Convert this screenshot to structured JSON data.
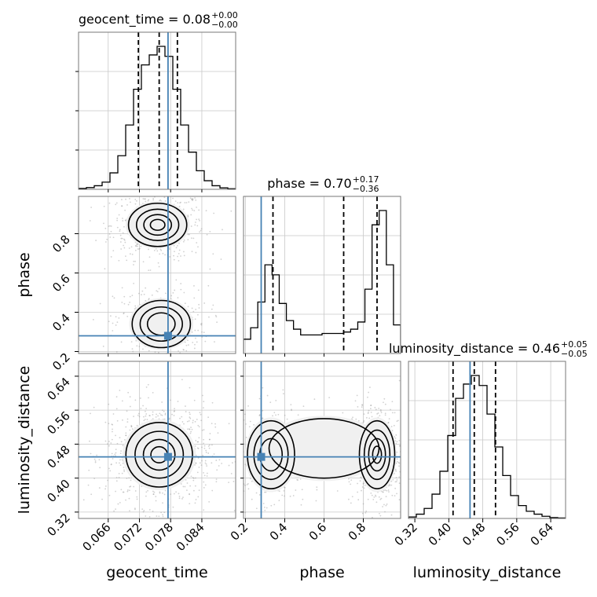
{
  "chart_data": {
    "type": "corner",
    "parameters": [
      "geocent_time",
      "phase",
      "luminosity_distance"
    ],
    "titles": [
      {
        "param": "geocent_time",
        "prefix": "geocent_time = ",
        "value": "0.08",
        "upper": "+0.00",
        "lower": "−0.00"
      },
      {
        "param": "phase",
        "prefix": "phase = ",
        "value": "0.70",
        "upper": "+0.17",
        "lower": "−0.36"
      },
      {
        "param": "luminosity_distance",
        "prefix": "luminosity_distance = ",
        "value": "0.46",
        "upper": "+0.05",
        "lower": "−0.05"
      }
    ],
    "truths": {
      "geocent_time": 0.0775,
      "phase": 0.28,
      "luminosity_distance": 0.45
    },
    "quantiles": {
      "geocent_time": [
        0.0718,
        0.0758,
        0.0793
      ],
      "phase": [
        0.34,
        0.7,
        0.87
      ],
      "luminosity_distance": [
        0.41,
        0.46,
        0.51
      ]
    },
    "ranges": {
      "geocent_time": [
        0.0603,
        0.0905
      ],
      "phase": [
        0.19,
        0.99
      ],
      "luminosity_distance": [
        0.305,
        0.675
      ]
    },
    "ticks": {
      "geocent_time": [
        "0.066",
        "0.072",
        "0.078",
        "0.084"
      ],
      "phase": [
        "0.2",
        "0.4",
        "0.6",
        "0.8"
      ],
      "luminosity_distance": [
        "0.32",
        "0.40",
        "0.48",
        "0.56",
        "0.64"
      ]
    },
    "histograms": {
      "geocent_time": [
        0.006,
        0.012,
        0.025,
        0.05,
        0.115,
        0.235,
        0.45,
        0.7,
        0.87,
        0.94,
        1.0,
        0.93,
        0.7,
        0.45,
        0.26,
        0.13,
        0.06,
        0.025,
        0.01,
        0.004
      ],
      "phase": [
        0.1,
        0.18,
        0.36,
        0.62,
        0.55,
        0.35,
        0.23,
        0.17,
        0.13,
        0.13,
        0.13,
        0.14,
        0.14,
        0.14,
        0.15,
        0.17,
        0.22,
        0.45,
        0.9,
        1.0,
        0.62,
        0.2
      ],
      "luminosity_distance": [
        0.01,
        0.03,
        0.07,
        0.17,
        0.33,
        0.58,
        0.84,
        0.94,
        1.0,
        0.93,
        0.73,
        0.5,
        0.3,
        0.16,
        0.09,
        0.05,
        0.03,
        0.015,
        0.006,
        0.003
      ]
    },
    "grid": true
  }
}
